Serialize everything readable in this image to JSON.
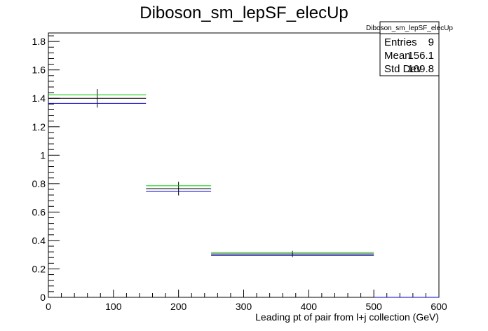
{
  "chart_data": {
    "type": "line",
    "title": "Diboson_sm_lepSF_elecUp",
    "xlabel": "Leading pt of pair from l+j collection (GeV)",
    "ylabel": "",
    "xlim": [
      0,
      600
    ],
    "ylim": [
      0,
      1.86
    ],
    "x_ticks": [
      0,
      100,
      200,
      300,
      400,
      500,
      600
    ],
    "y_ticks": [
      0,
      0.2,
      0.4,
      0.6,
      0.8,
      1,
      1.2,
      1.4,
      1.6,
      1.8
    ],
    "bins": [
      [
        0,
        150
      ],
      [
        150,
        250
      ],
      [
        250,
        500
      ],
      [
        500,
        600
      ]
    ],
    "series": [
      {
        "color": "#000000",
        "values": [
          1.4,
          0.765,
          0.305,
          0.0
        ],
        "errors": [
          0.065,
          0.048,
          0.022,
          0.0
        ]
      },
      {
        "color": "#00cc00",
        "values": [
          1.425,
          0.785,
          0.315,
          0.0
        ]
      },
      {
        "color": "#0000cc",
        "values": [
          1.365,
          0.745,
          0.295,
          0.0
        ]
      }
    ],
    "stats_box": {
      "name": "Diboson_sm_lepSF_elecUp",
      "rows": [
        {
          "label": "Entries",
          "value": "9"
        },
        {
          "label": "Mean",
          "value": "156.1"
        },
        {
          "label": "Std Dev",
          "value": "109.8"
        }
      ]
    },
    "legend_position": "top-right",
    "grid": false
  }
}
